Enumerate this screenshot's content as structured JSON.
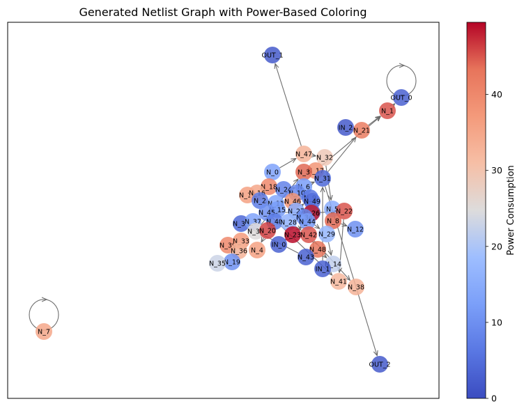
{
  "chart_data": {
    "type": "scatter",
    "title": "Generated Netlist Graph with Power-Based Coloring",
    "colorbar": {
      "label": "Power Consumption",
      "min": 0,
      "max": 49.5,
      "ticks": [
        "0",
        "10",
        "20",
        "30",
        "40"
      ],
      "tick_values": [
        0,
        10,
        20,
        30,
        40
      ],
      "colormap": "coolwarm"
    },
    "nodes": [
      {
        "label": "OUT_1",
        "power": 2
      },
      {
        "label": "OUT_0",
        "power": 3
      },
      {
        "label": "N_1",
        "power": 45
      },
      {
        "label": "IN_2",
        "power": 2
      },
      {
        "label": "N_21",
        "power": 42
      },
      {
        "label": "N_47",
        "power": 33
      },
      {
        "label": "N_32",
        "power": 29
      },
      {
        "label": "N_0",
        "power": 13
      },
      {
        "label": "N_17",
        "power": 38
      },
      {
        "label": "N_3",
        "power": 44
      },
      {
        "label": "N_31",
        "power": 4
      },
      {
        "label": "N_18",
        "power": 40
      },
      {
        "label": "N_13",
        "power": 36
      },
      {
        "label": "N_16",
        "power": 35
      },
      {
        "label": "N_24",
        "power": 8
      },
      {
        "label": "N_6",
        "power": 12
      },
      {
        "label": "N_10",
        "power": 9
      },
      {
        "label": "N_2",
        "power": 7
      },
      {
        "label": "N_11",
        "power": 14
      },
      {
        "label": "N_46",
        "power": 38
      },
      {
        "label": "N_9",
        "power": 6
      },
      {
        "label": "N_49",
        "power": 5
      },
      {
        "label": "N_25",
        "power": 5
      },
      {
        "label": "N_15",
        "power": 12
      },
      {
        "label": "N_27",
        "power": 15
      },
      {
        "label": "N_26",
        "power": 48
      },
      {
        "label": "N_5",
        "power": 15
      },
      {
        "label": "N_22",
        "power": 45
      },
      {
        "label": "N_45",
        "power": 10
      },
      {
        "label": "N_34",
        "power": 9
      },
      {
        "label": "N_8",
        "power": 44
      },
      {
        "label": "N_35",
        "power": 4
      },
      {
        "label": "N_37",
        "power": 13
      },
      {
        "label": "N_40",
        "power": 7
      },
      {
        "label": "N_28",
        "power": 16
      },
      {
        "label": "N_44",
        "power": 12
      },
      {
        "label": "N_12",
        "power": 10
      },
      {
        "label": "N_30",
        "power": 25
      },
      {
        "label": "N_20",
        "power": 46
      },
      {
        "label": "N_23",
        "power": 49
      },
      {
        "label": "N_42",
        "power": 45
      },
      {
        "label": "N_29",
        "power": 17
      },
      {
        "label": "N_39",
        "power": 40
      },
      {
        "label": "N_33",
        "power": 37
      },
      {
        "label": "N_36",
        "power": 33
      },
      {
        "label": "N_4",
        "power": 36
      },
      {
        "label": "IN_0",
        "power": 3
      },
      {
        "label": "N_48",
        "power": 43
      },
      {
        "label": "N_43",
        "power": 3
      },
      {
        "label": "N_19",
        "power": 10
      },
      {
        "label": "N_14",
        "power": 22
      },
      {
        "label": "IN_1",
        "power": 3
      },
      {
        "label": "N_35b",
        "power": 23
      },
      {
        "label": "N_41",
        "power": 32
      },
      {
        "label": "N_38",
        "power": 33
      },
      {
        "label": "OUT_2",
        "power": 2
      },
      {
        "label": "N_7",
        "power": 35
      }
    ],
    "display_labels": {
      "N_35b": "N_35"
    },
    "edges": [
      [
        "N_47",
        "OUT_1"
      ],
      [
        "N_31",
        "N_21"
      ],
      [
        "N_17",
        "N_1"
      ],
      [
        "N_1",
        "OUT_0"
      ],
      [
        "N_0",
        "N_47"
      ],
      [
        "N_42",
        "N_38"
      ],
      [
        "N_22",
        "N_41"
      ],
      [
        "N_31",
        "OUT_2"
      ],
      [
        "N_8",
        "N_12"
      ],
      [
        "N_5",
        "N_8"
      ],
      [
        "N_26",
        "N_22"
      ],
      [
        "N_29",
        "N_14"
      ],
      [
        "N_48",
        "N_14"
      ],
      [
        "N_25",
        "N_45"
      ],
      [
        "N_40",
        "N_20"
      ],
      [
        "N_30",
        "N_3"
      ],
      [
        "N_36",
        "N_39"
      ],
      [
        "N_27",
        "N_9"
      ],
      [
        "N_11",
        "N_46"
      ],
      [
        "N_2",
        "N_15"
      ],
      [
        "N_18",
        "N_16"
      ],
      [
        "N_3",
        "N_17"
      ],
      [
        "N_6",
        "N_31"
      ],
      [
        "N_10",
        "N_49"
      ],
      [
        "N_44",
        "N_23"
      ],
      [
        "N_42",
        "N_48"
      ],
      [
        "N_24",
        "N_6"
      ],
      [
        "N_35",
        "N_37"
      ],
      [
        "N_20",
        "N_4"
      ],
      [
        "IN_0",
        "N_23"
      ],
      [
        "N_32",
        "N_5"
      ],
      [
        "N_21",
        "N_1"
      ],
      [
        "N_47",
        "N_32"
      ],
      [
        "N_45",
        "N_41"
      ],
      [
        "N_43",
        "N_35"
      ],
      [
        "IN_1",
        "N_31"
      ],
      [
        "N_34",
        "N_29"
      ],
      [
        "N_28",
        "N_42"
      ]
    ],
    "self_loops": [
      "OUT_0",
      "N_7"
    ]
  }
}
